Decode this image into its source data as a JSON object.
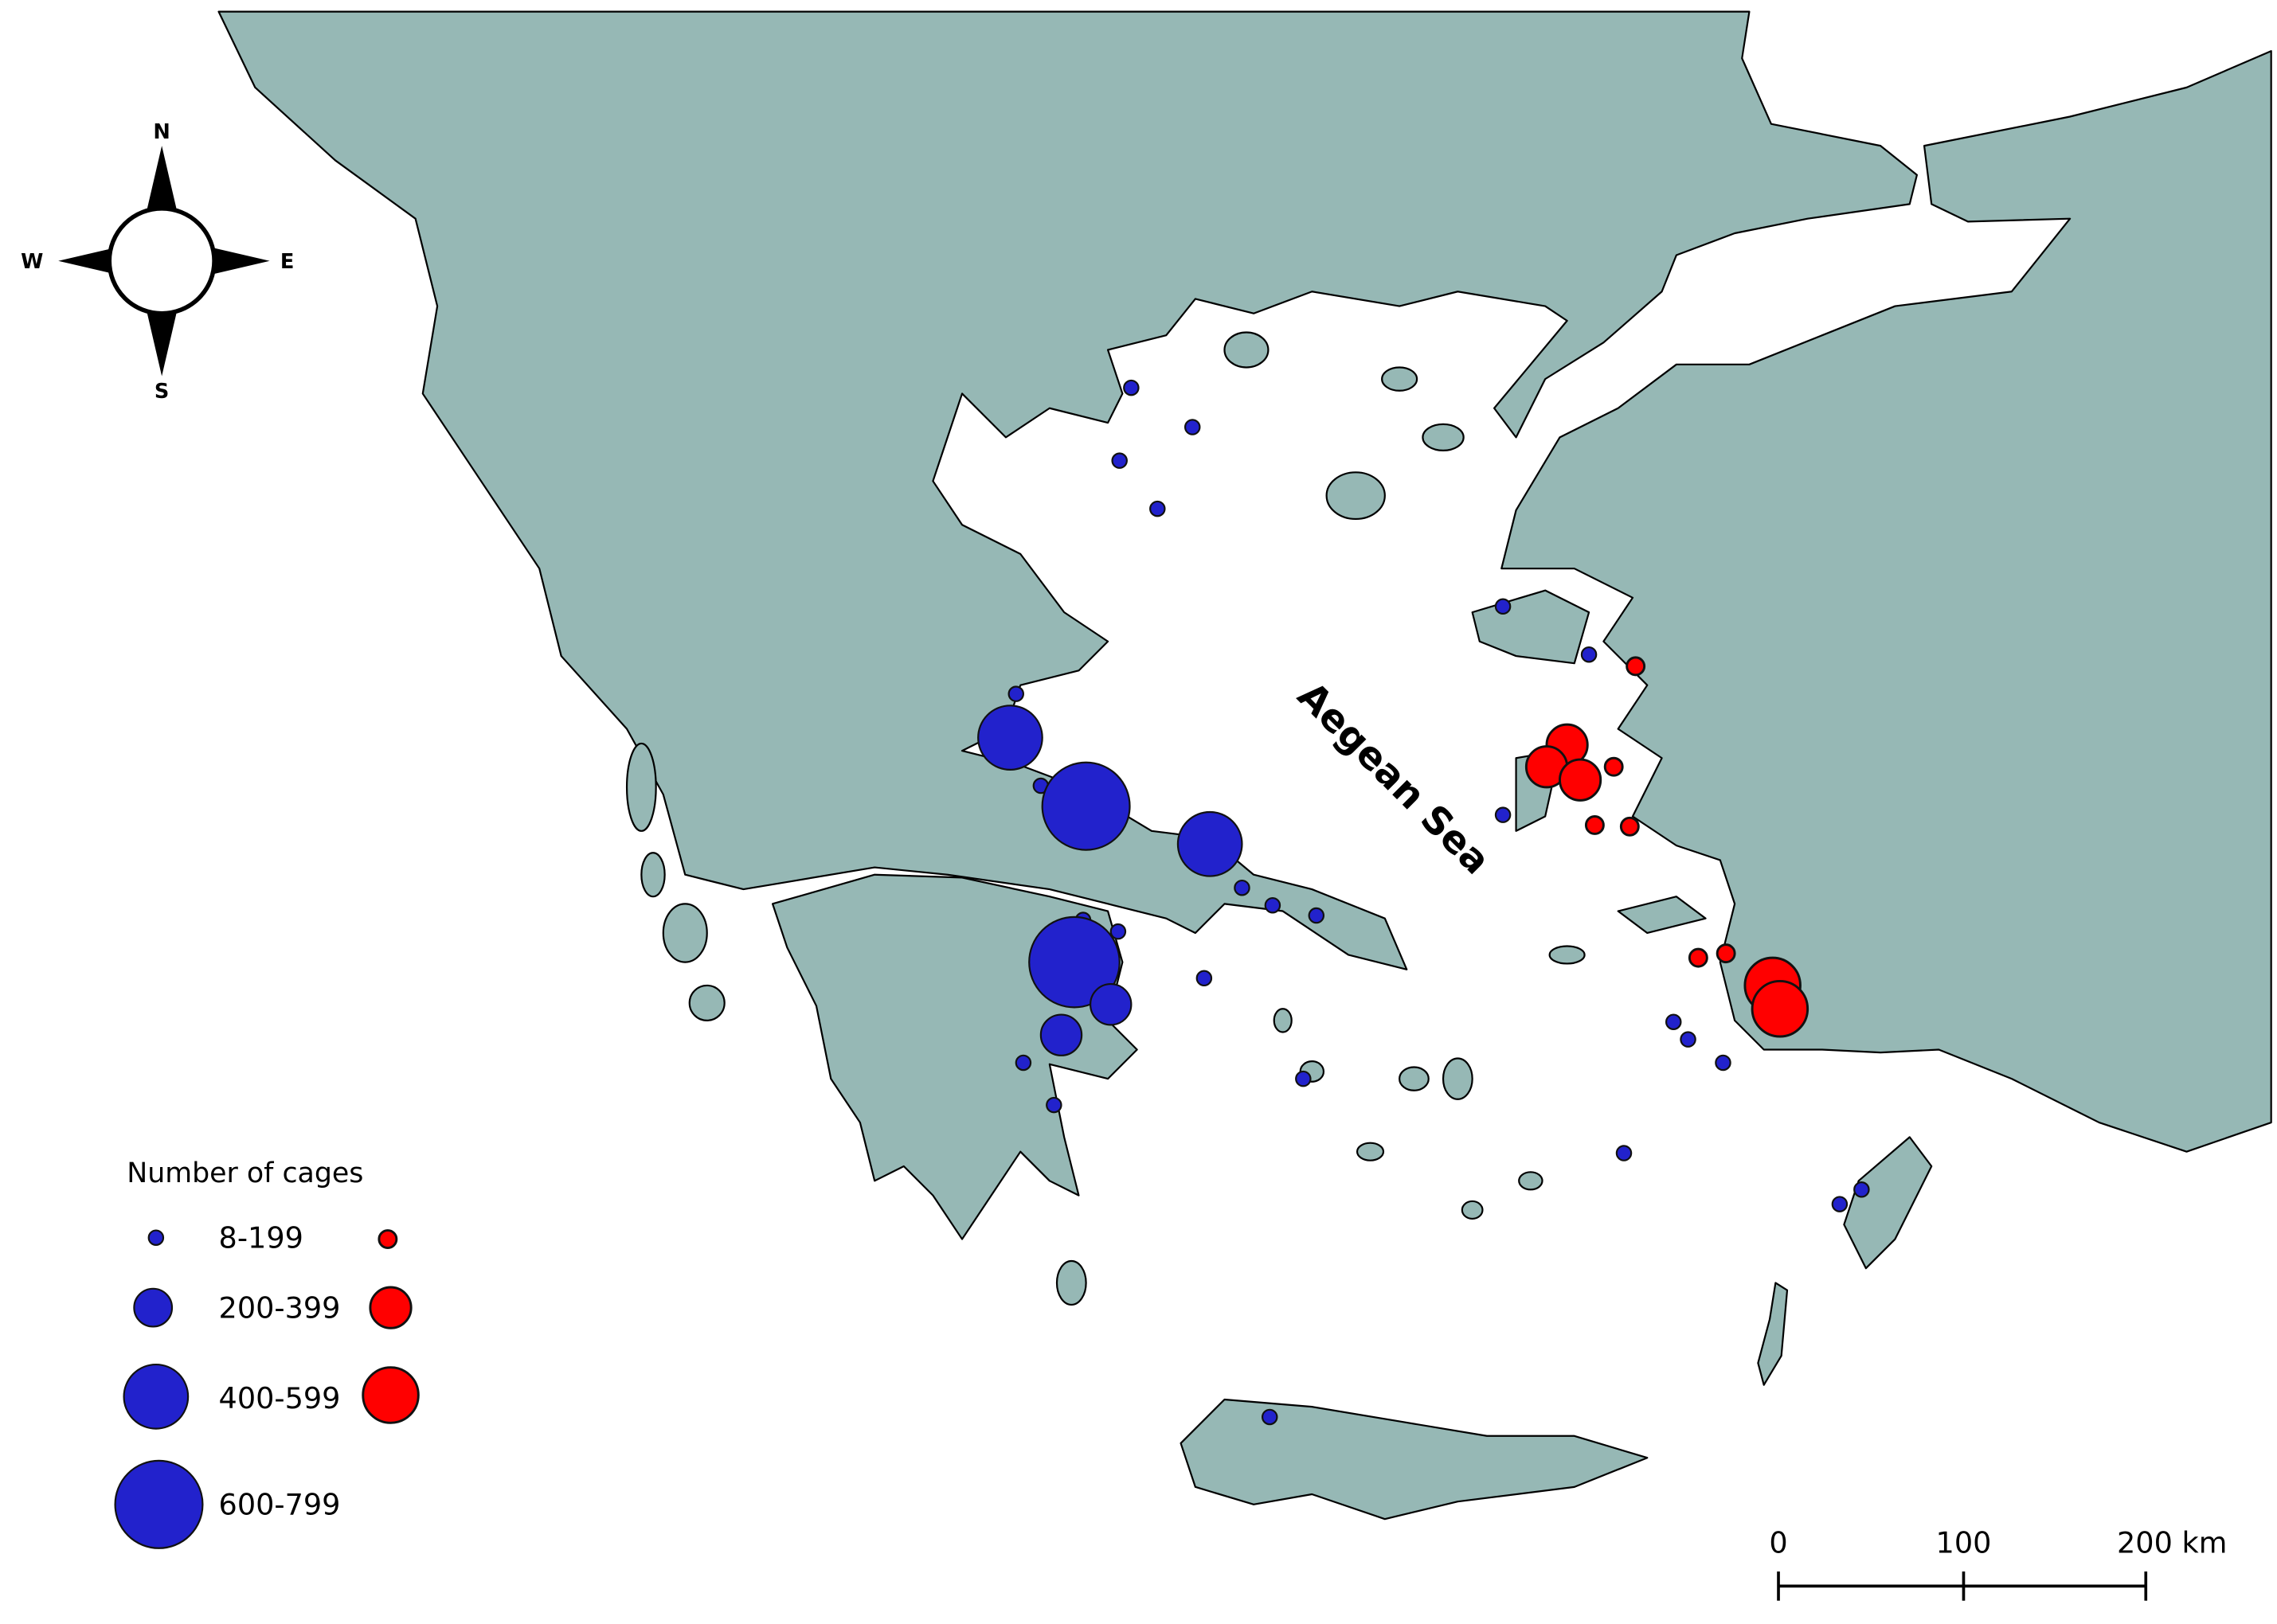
{
  "compass": {
    "north": "N",
    "south": "S",
    "east": "E",
    "west": "W"
  },
  "sea_label": "Aegean Sea",
  "legend": {
    "title": "Number of cages",
    "classes": [
      "8-199",
      "200-399",
      "400-599",
      "600-799"
    ]
  },
  "scale_bar": {
    "labels": [
      "0",
      "100",
      "200 km"
    ]
  }
}
